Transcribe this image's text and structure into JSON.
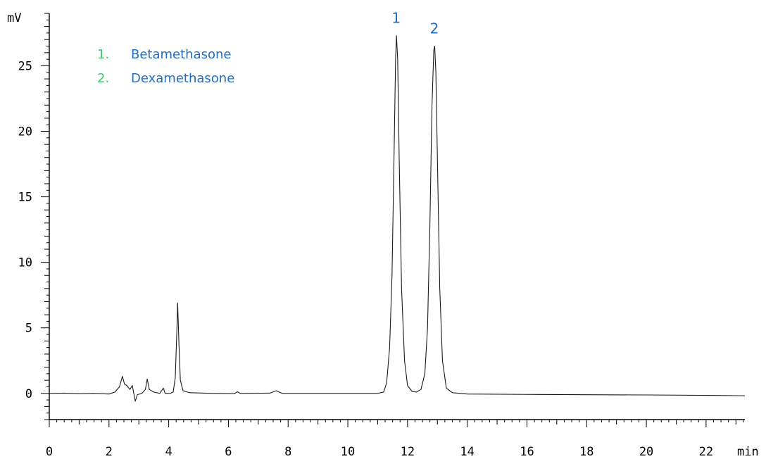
{
  "chart_data": {
    "type": "line",
    "title": "",
    "xlabel": "min",
    "ylabel": "mV",
    "xlim": [
      0,
      23.3
    ],
    "ylim": [
      -2,
      29
    ],
    "x_ticks": [
      0,
      2,
      4,
      6,
      8,
      10,
      12,
      14,
      16,
      18,
      20,
      22
    ],
    "y_ticks": [
      0,
      5,
      10,
      15,
      20,
      25
    ],
    "grid": false,
    "legend_position": "top-left",
    "colors": {
      "axis": "#000000",
      "trace": "#1a1a1a",
      "legend_number": "#33cc66",
      "legend_name": "#1f6fc4",
      "peak_label": "#1f6fc4"
    },
    "legend": [
      {
        "number": "1.",
        "name": "Betamethasone"
      },
      {
        "number": "2.",
        "name": "Dexamethasone"
      }
    ],
    "peak_labels": [
      {
        "text": "1",
        "x": 11.62,
        "y": 27.3
      },
      {
        "text": "2",
        "x": 12.9,
        "y": 26.5
      }
    ],
    "series": [
      {
        "points": [
          [
            0,
            0.0
          ],
          [
            0.5,
            0.02
          ],
          [
            1.0,
            -0.03
          ],
          [
            1.5,
            0.0
          ],
          [
            2.0,
            -0.05
          ],
          [
            2.2,
            0.1
          ],
          [
            2.35,
            0.5
          ],
          [
            2.45,
            1.3
          ],
          [
            2.52,
            0.7
          ],
          [
            2.6,
            0.6
          ],
          [
            2.7,
            0.3
          ],
          [
            2.78,
            0.6
          ],
          [
            2.83,
            0.0
          ],
          [
            2.88,
            -0.6
          ],
          [
            2.95,
            -0.1
          ],
          [
            3.1,
            0.0
          ],
          [
            3.22,
            0.3
          ],
          [
            3.28,
            1.1
          ],
          [
            3.35,
            0.3
          ],
          [
            3.5,
            0.1
          ],
          [
            3.7,
            0.0
          ],
          [
            3.82,
            0.4
          ],
          [
            3.88,
            0.0
          ],
          [
            4.05,
            0.0
          ],
          [
            4.15,
            0.1
          ],
          [
            4.22,
            1.2
          ],
          [
            4.27,
            4.5
          ],
          [
            4.3,
            6.9
          ],
          [
            4.34,
            4.0
          ],
          [
            4.39,
            1.0
          ],
          [
            4.48,
            0.2
          ],
          [
            4.7,
            0.05
          ],
          [
            5.5,
            0.0
          ],
          [
            6.2,
            -0.02
          ],
          [
            6.3,
            0.12
          ],
          [
            6.4,
            0.0
          ],
          [
            7.4,
            0.02
          ],
          [
            7.6,
            0.2
          ],
          [
            7.8,
            0.0
          ],
          [
            9.0,
            0.0
          ],
          [
            10.5,
            0.0
          ],
          [
            11.0,
            0.0
          ],
          [
            11.2,
            0.1
          ],
          [
            11.3,
            0.8
          ],
          [
            11.4,
            3.5
          ],
          [
            11.48,
            9.0
          ],
          [
            11.54,
            17.0
          ],
          [
            11.6,
            25.5
          ],
          [
            11.63,
            27.3
          ],
          [
            11.67,
            25.5
          ],
          [
            11.72,
            18.0
          ],
          [
            11.8,
            8.0
          ],
          [
            11.9,
            2.5
          ],
          [
            12.0,
            0.6
          ],
          [
            12.15,
            0.15
          ],
          [
            12.3,
            0.1
          ],
          [
            12.45,
            0.3
          ],
          [
            12.58,
            1.5
          ],
          [
            12.67,
            5.0
          ],
          [
            12.75,
            13.0
          ],
          [
            12.82,
            22.0
          ],
          [
            12.88,
            26.2
          ],
          [
            12.91,
            26.5
          ],
          [
            12.95,
            24.5
          ],
          [
            13.0,
            18.0
          ],
          [
            13.08,
            8.0
          ],
          [
            13.17,
            2.5
          ],
          [
            13.3,
            0.4
          ],
          [
            13.5,
            0.05
          ],
          [
            14.0,
            -0.05
          ],
          [
            16.0,
            -0.08
          ],
          [
            18.0,
            -0.1
          ],
          [
            20.0,
            -0.12
          ],
          [
            22.0,
            -0.15
          ],
          [
            23.3,
            -0.18
          ]
        ]
      }
    ]
  }
}
